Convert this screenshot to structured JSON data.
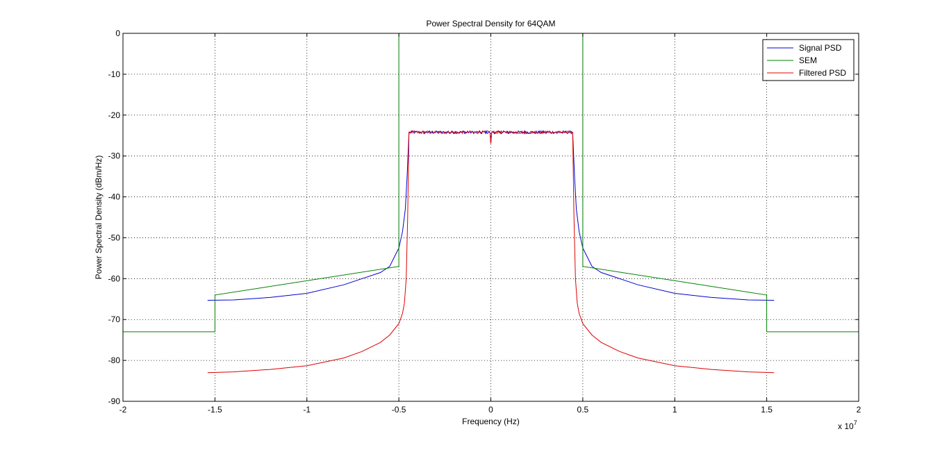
{
  "chart_data": {
    "type": "line",
    "title": "Power Spectral Density for 64QAM",
    "xlabel": "Frequency (Hz)",
    "ylabel": "Power Spectral Density (dBm/Hz)",
    "x_exponent_label": "x 10",
    "x_exponent_power": "7",
    "x_scale": 10000000,
    "xlim": [
      -20000000,
      20000000
    ],
    "ylim": [
      -90,
      0
    ],
    "xticks": [
      -20000000,
      -15000000,
      -10000000,
      -5000000,
      0,
      5000000,
      10000000,
      15000000,
      20000000
    ],
    "xtick_labels": [
      "-2",
      "-1.5",
      "-1",
      "-0.5",
      "0",
      "0.5",
      "1",
      "1.5",
      "2"
    ],
    "yticks": [
      0,
      -10,
      -20,
      -30,
      -40,
      -50,
      -60,
      -70,
      -80,
      -90
    ],
    "ytick_labels": [
      "0",
      "-10",
      "-20",
      "-30",
      "-40",
      "-50",
      "-60",
      "-70",
      "-80",
      "-90"
    ],
    "grid": true,
    "legend_position": "top-right",
    "series": [
      {
        "name": "Signal PSD",
        "color": "#0000cc",
        "x": [
          -15400000,
          -14000000,
          -12000000,
          -10000000,
          -8000000,
          -7000000,
          -6000000,
          -5500000,
          -5000000,
          -4800000,
          -4650000,
          -4550000,
          -4450000,
          4450000,
          4550000,
          4650000,
          4800000,
          5000000,
          5500000,
          6000000,
          7000000,
          8000000,
          10000000,
          12000000,
          14000000,
          15400000
        ],
        "y": [
          -65.3,
          -65.2,
          -64.6,
          -63.6,
          -61.5,
          -60.0,
          -58.5,
          -57.0,
          -52.5,
          -48.5,
          -43.0,
          -35.0,
          -24.2,
          -24.2,
          -35.0,
          -43.0,
          -48.5,
          -52.5,
          -57.0,
          -58.5,
          -60.0,
          -61.5,
          -63.6,
          -64.6,
          -65.2,
          -65.3
        ]
      },
      {
        "name": "SEM",
        "color": "#008000",
        "x": [
          -20000000,
          -15000000,
          -15000000,
          -5000000,
          -5000000,
          5000000,
          5000000,
          15000000,
          15000000,
          20000000
        ],
        "y": [
          -73,
          -73,
          -64,
          -57,
          0,
          0,
          -57,
          -64,
          -73,
          -73
        ]
      },
      {
        "name": "Filtered PSD",
        "color": "#dd0000",
        "x": [
          -15400000,
          -14000000,
          -12000000,
          -10000000,
          -8000000,
          -7000000,
          -6000000,
          -5500000,
          -5000000,
          -4800000,
          -4700000,
          -4600000,
          -4520000,
          -4450000,
          4450000,
          4520000,
          4600000,
          4700000,
          4800000,
          5000000,
          5500000,
          6000000,
          7000000,
          8000000,
          10000000,
          12000000,
          14000000,
          15400000
        ],
        "y": [
          -83.0,
          -82.8,
          -82.2,
          -81.3,
          -79.4,
          -77.8,
          -75.6,
          -73.8,
          -71.0,
          -68.5,
          -66.0,
          -60.0,
          -45.0,
          -24.2,
          -24.2,
          -45.0,
          -60.0,
          -66.0,
          -68.5,
          -71.0,
          -73.8,
          -75.6,
          -77.8,
          -79.4,
          -81.3,
          -82.2,
          -82.8,
          -83.0
        ]
      }
    ],
    "passband": {
      "x_start": -4450000,
      "x_end": 4450000,
      "level": -24.2,
      "noise_amplitude": 0.35,
      "center_dip": -27.0
    }
  }
}
